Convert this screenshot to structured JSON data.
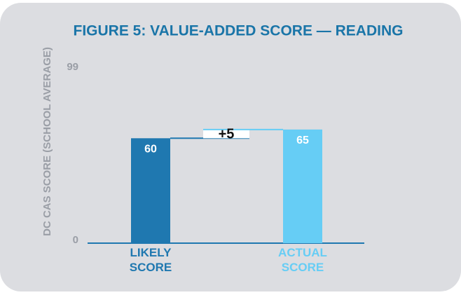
{
  "chart_data": {
    "type": "bar",
    "title": "FIGURE 5: VALUE-ADDED SCORE — READING",
    "y_label": "DC CAS SCORE (SCHOOL AVERAGE)",
    "categories": [
      "LIKELY SCORE",
      "ACTUAL SCORE"
    ],
    "values": [
      60,
      65
    ],
    "colors": [
      "#1f78b0",
      "#66cdf5"
    ],
    "annotation": "+5",
    "ylim": [
      0,
      99
    ],
    "yticks": [
      0,
      99
    ],
    "grid": false
  }
}
